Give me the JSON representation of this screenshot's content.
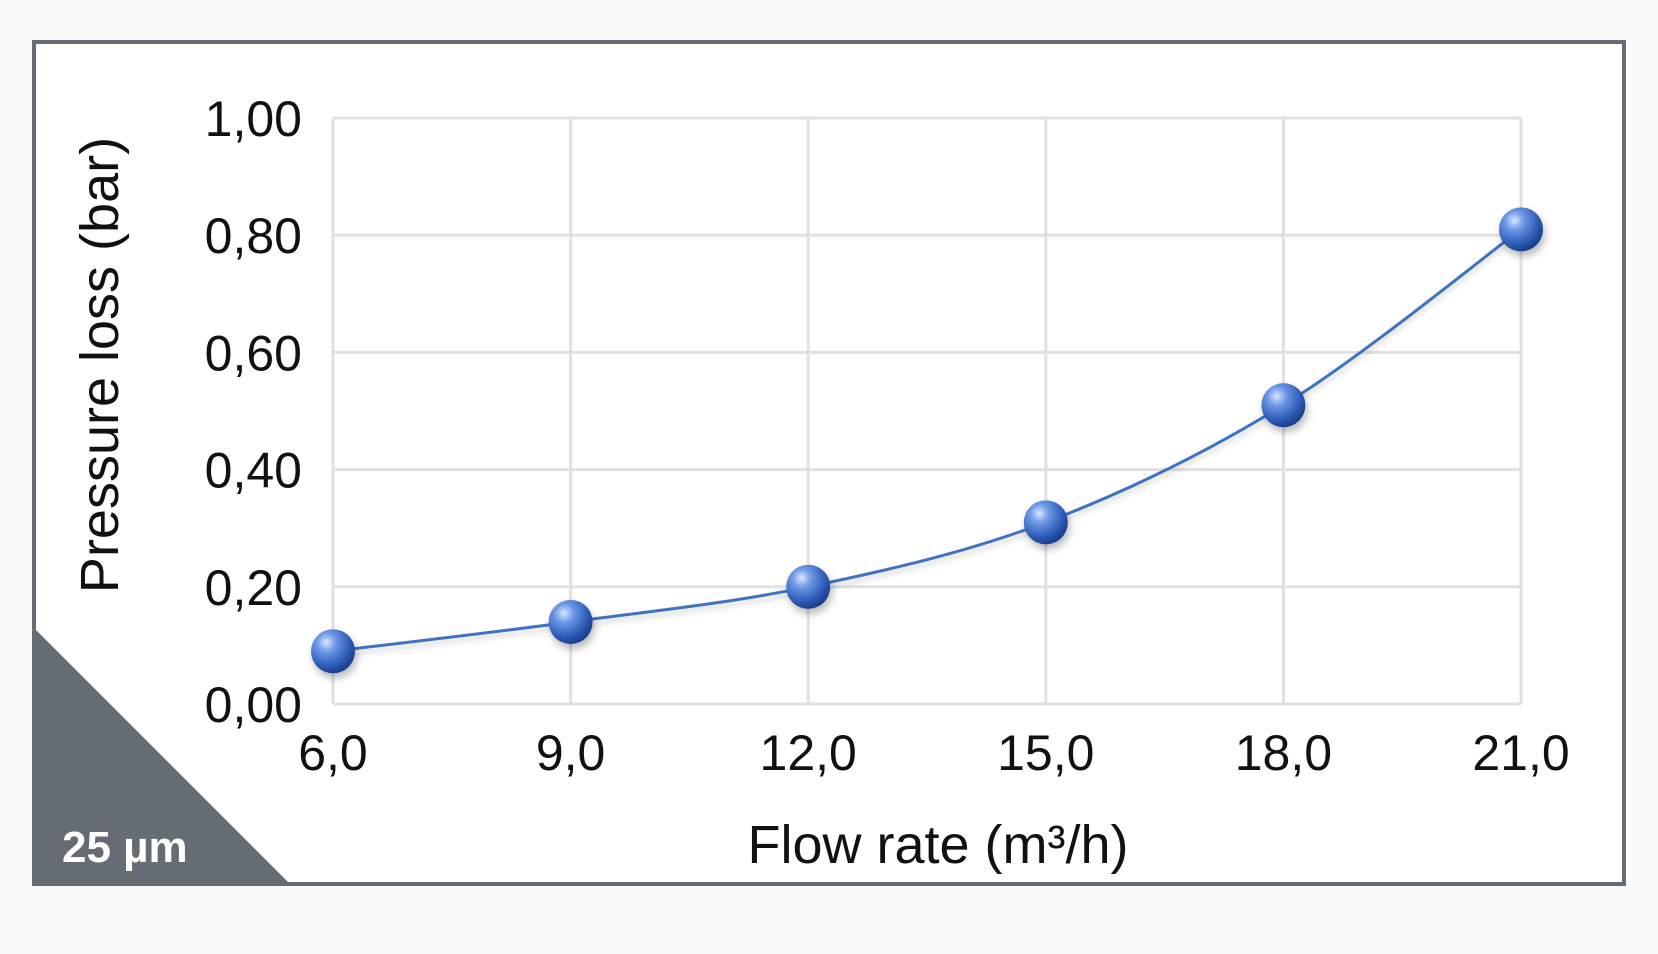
{
  "badge": {
    "label": "25 µm"
  },
  "colors": {
    "frame": "#666c74",
    "badge": "#666c74",
    "grid": "#e1e1e1",
    "series": "#3f72c4",
    "marker": "#3a67c5",
    "text": "#111111"
  },
  "chart_data": {
    "type": "line",
    "title": "",
    "xlabel": "Flow rate (m³/h)",
    "ylabel": "Pressure loss (bar)",
    "x": [
      6.0,
      9.0,
      12.0,
      15.0,
      18.0,
      21.0
    ],
    "x_tick_labels": [
      "6,0",
      "9,0",
      "12,0",
      "15,0",
      "18,0",
      "21,0"
    ],
    "y_tick_values": [
      0,
      0.2,
      0.4,
      0.6,
      0.8,
      1.0
    ],
    "y_tick_labels": [
      "0,00",
      "0,20",
      "0,40",
      "0,60",
      "0,80",
      "1,00"
    ],
    "xlim": [
      6.0,
      21.0
    ],
    "ylim": [
      0,
      1.0
    ],
    "grid": true,
    "legend": "none",
    "series": [
      {
        "values": [
          0.09,
          0.14,
          0.2,
          0.31,
          0.51,
          0.81
        ]
      }
    ]
  }
}
